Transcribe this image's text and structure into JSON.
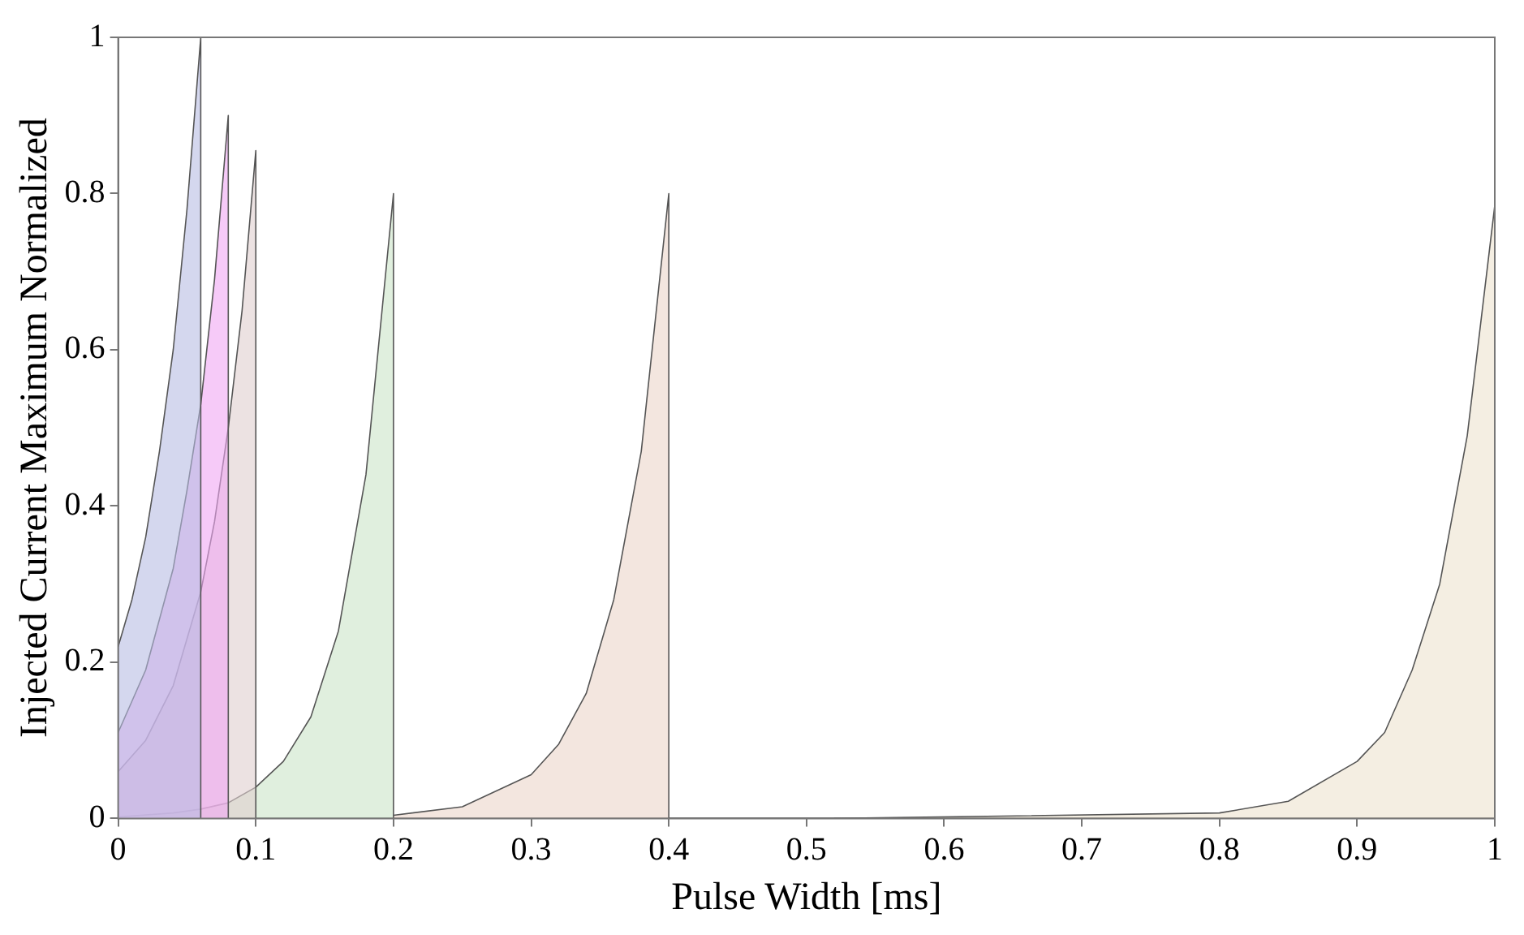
{
  "chart_data": {
    "type": "area",
    "xlabel": "Pulse Width [ms]",
    "ylabel": "Injected Current Maximum Normalized",
    "xlim": [
      0,
      1
    ],
    "ylim": [
      0,
      1
    ],
    "xticks": [
      0,
      0.1,
      0.2,
      0.3,
      0.4,
      0.5,
      0.6,
      0.7,
      0.8,
      0.9,
      1
    ],
    "yticks": [
      0,
      0.2,
      0.4,
      0.6,
      0.8,
      1
    ],
    "grid": false,
    "legend": false,
    "series": [
      {
        "color": "#b8bce2",
        "x": [
          0,
          0.01,
          0.02,
          0.03,
          0.04,
          0.05,
          0.06,
          0.06
        ],
        "values": [
          0.22,
          0.28,
          0.36,
          0.47,
          0.6,
          0.78,
          1.0,
          0
        ]
      },
      {
        "color": "#f0a6f4",
        "x": [
          0,
          0.02,
          0.04,
          0.05,
          0.06,
          0.07,
          0.08,
          0.08
        ],
        "values": [
          0.11,
          0.19,
          0.32,
          0.42,
          0.53,
          0.69,
          0.9,
          0
        ]
      },
      {
        "color": "#e0cfcf",
        "x": [
          0,
          0.02,
          0.04,
          0.06,
          0.07,
          0.08,
          0.09,
          0.1,
          0.1
        ],
        "values": [
          0.06,
          0.1,
          0.17,
          0.29,
          0.38,
          0.5,
          0.65,
          0.855,
          0
        ]
      },
      {
        "color": "#cbe4c8",
        "x": [
          0,
          0.04,
          0.06,
          0.08,
          0.1,
          0.12,
          0.14,
          0.16,
          0.18,
          0.2,
          0.2
        ],
        "values": [
          0.002,
          0.007,
          0.012,
          0.02,
          0.04,
          0.073,
          0.13,
          0.24,
          0.44,
          0.8,
          0
        ]
      },
      {
        "color": "#ebd6c9",
        "x": [
          0.2,
          0.25,
          0.3,
          0.32,
          0.34,
          0.36,
          0.38,
          0.4,
          0.4
        ],
        "values": [
          0.004,
          0.015,
          0.056,
          0.095,
          0.16,
          0.28,
          0.47,
          0.8,
          0
        ]
      },
      {
        "color": "#ece3cf",
        "x": [
          0.52,
          0.8,
          0.85,
          0.9,
          0.92,
          0.94,
          0.96,
          0.98,
          1.0,
          1.0
        ],
        "values": [
          0,
          0.007,
          0.022,
          0.073,
          0.11,
          0.19,
          0.3,
          0.49,
          0.785,
          0
        ]
      }
    ]
  }
}
